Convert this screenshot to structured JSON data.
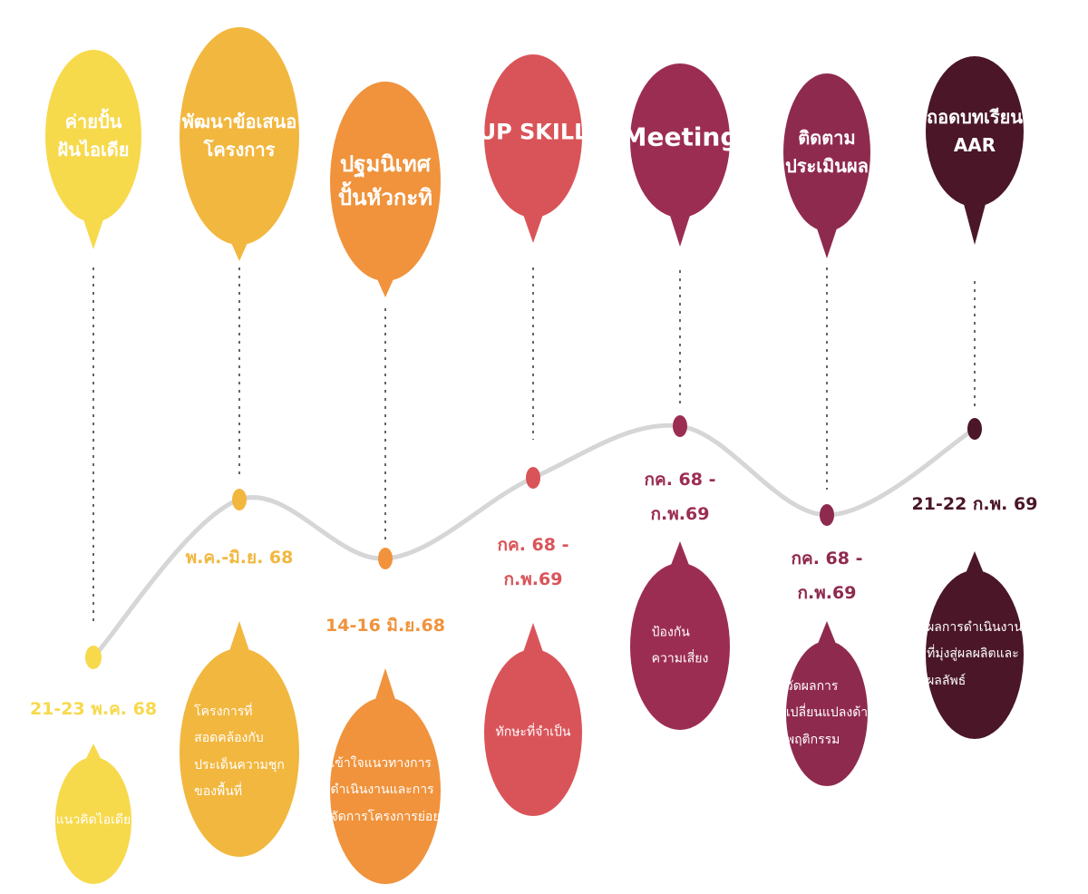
{
  "timeline": {
    "curve_color": "#d6d6d6",
    "connector_color": "#666666",
    "stages": [
      {
        "title": [
          "ค่ายปั้น",
          "ฝันไอเดีย"
        ],
        "date": [
          "21-23  พ.ค. 68"
        ],
        "description": [
          "แนวคิดไอเดีย"
        ],
        "color": "#f7d94c"
      },
      {
        "title": [
          "พัฒนาข้อเสนอ",
          "โครงการ"
        ],
        "date": [
          "พ.ค.-มิ.ย. 68"
        ],
        "description": [
          "โครงการที่",
          "สอดคล้องกับ",
          "ประเด็นความชุก",
          "ของพื้นที่"
        ],
        "color": "#f2b73f"
      },
      {
        "title": [
          "ปฐมนิเทศ",
          "ปั้นหัวกะทิ"
        ],
        "date": [
          "14-16 มิ.ย.68"
        ],
        "description": [
          "เข้าใจแนวทางการ",
          "ดำเนินงานและการ",
          "จัดการโครงการย่อย"
        ],
        "color": "#f0933c"
      },
      {
        "title": [
          "UP SKILL"
        ],
        "date": [
          "กค. 68 -",
          "ก.พ.69"
        ],
        "description": [
          "ทักษะที่จำเป็น"
        ],
        "color": "#d95459"
      },
      {
        "title": [
          "Meeting"
        ],
        "date": [
          "กค. 68 -",
          "ก.พ.69"
        ],
        "description": [
          "ป้องกัน",
          "ความเสี่ยง"
        ],
        "color": "#9c2d52"
      },
      {
        "title": [
          "ติดตาม",
          "ประเมินผล"
        ],
        "date": [
          "กค. 68 -",
          "ก.พ.69"
        ],
        "description": [
          "วัดผลการ",
          "เปลี่ยนแปลงด้า",
          "พฤติกรรม"
        ],
        "color": "#8f2a4f"
      },
      {
        "title": [
          "ถอดบทเรียน",
          "AAR"
        ],
        "date": [
          "21-22 ก.พ. 69"
        ],
        "description": [
          "ผลการดำเนินงาน",
          "ที่มุ่งสู่ผลผลิตและ",
          "ผลลัพธ์"
        ],
        "color": "#4a1628"
      }
    ]
  }
}
